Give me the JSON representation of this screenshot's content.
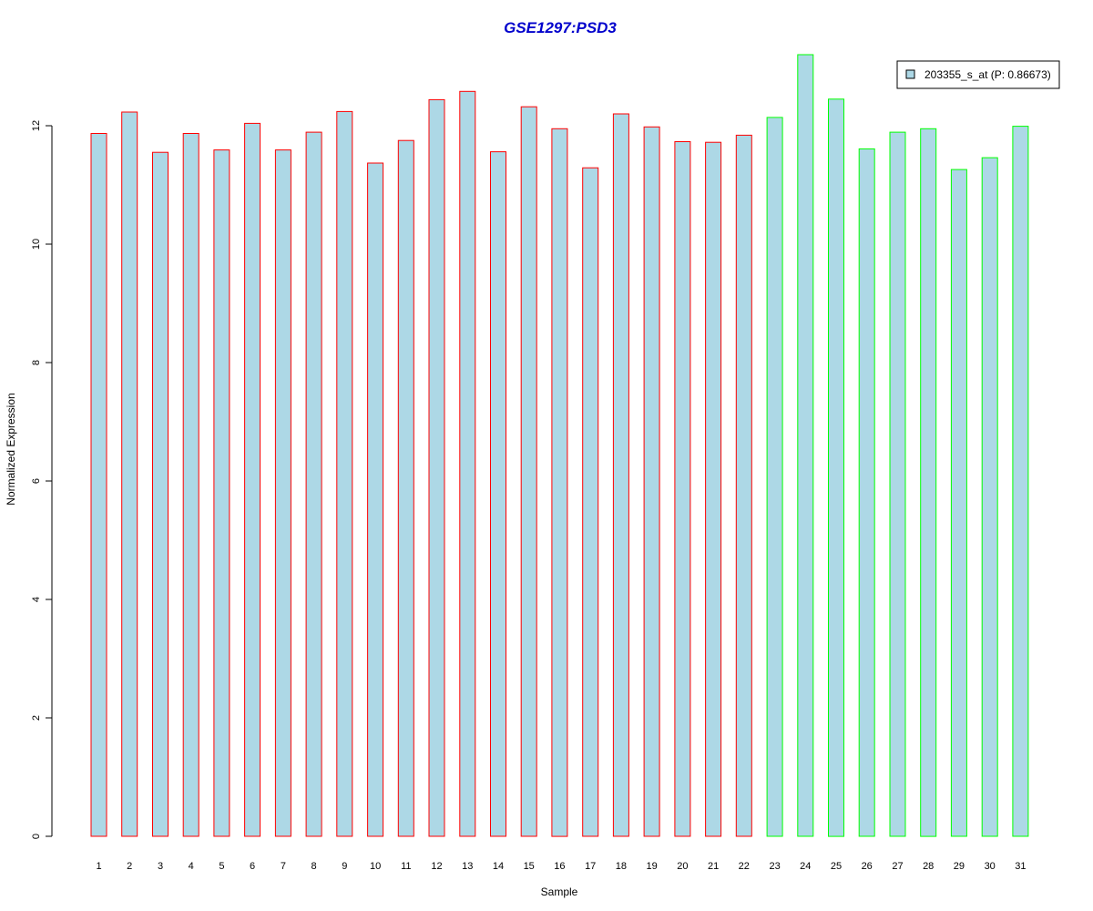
{
  "chart_data": {
    "type": "bar",
    "title": "GSE1297:PSD3",
    "xlabel": "Sample",
    "ylabel": "Normalized Expression",
    "ylim": [
      0,
      13.2
    ],
    "yticks": [
      0,
      2,
      4,
      6,
      8,
      10,
      12
    ],
    "grid": false,
    "categories": [
      "1",
      "2",
      "3",
      "4",
      "5",
      "6",
      "7",
      "8",
      "9",
      "10",
      "11",
      "12",
      "13",
      "14",
      "15",
      "16",
      "17",
      "18",
      "19",
      "20",
      "21",
      "22",
      "23",
      "24",
      "25",
      "26",
      "27",
      "28",
      "29",
      "30",
      "31"
    ],
    "values": [
      11.87,
      12.23,
      11.55,
      11.87,
      11.59,
      12.04,
      11.59,
      11.89,
      12.24,
      11.37,
      11.75,
      12.44,
      12.58,
      11.56,
      12.32,
      11.95,
      11.29,
      12.2,
      11.98,
      11.73,
      11.72,
      11.84,
      12.14,
      13.2,
      12.45,
      11.61,
      11.89,
      11.95,
      11.26,
      11.46,
      11.99
    ],
    "groups": [
      1,
      1,
      1,
      1,
      1,
      1,
      1,
      1,
      1,
      1,
      1,
      1,
      1,
      1,
      1,
      1,
      1,
      1,
      1,
      1,
      1,
      1,
      2,
      2,
      2,
      2,
      2,
      2,
      2,
      2,
      2
    ],
    "fill_color": "#ADD8E6",
    "group_colors": {
      "1": "#FF0000",
      "2": "#00FF00"
    },
    "legend": {
      "position": "top-right",
      "entries": [
        {
          "label": "203355_s_at (P: 0.86673)",
          "color": "#ADD8E6"
        }
      ]
    }
  }
}
